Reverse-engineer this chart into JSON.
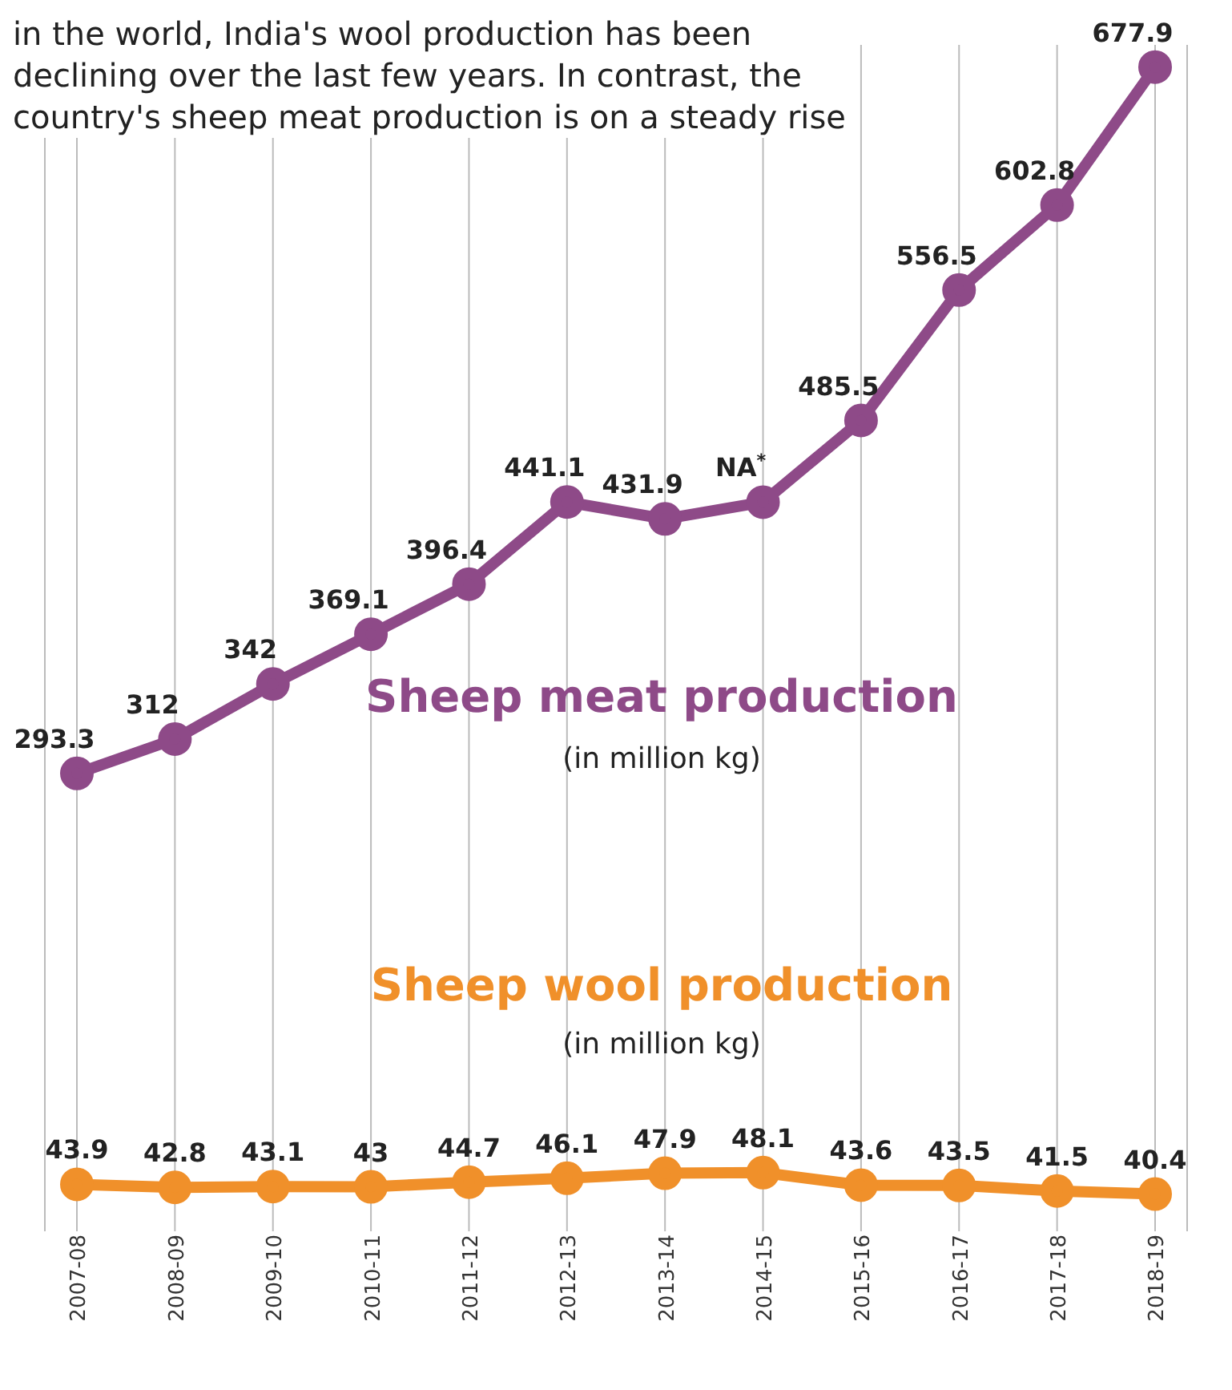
{
  "chart_data": {
    "type": "line",
    "title": "in the world, India's wool production has been declining over the last few years. In contrast, the country's sheep meat production is on a steady rise",
    "categories": [
      "2007-08",
      "2008-09",
      "2009-10",
      "2010-11",
      "2011-12",
      "2012-13",
      "2013-14",
      "2014-15",
      "2015-16",
      "2016-17",
      "2017-18",
      "2018-19"
    ],
    "series": [
      {
        "name": "Sheep meat production",
        "color": "#8e4a88",
        "values": [
          293.3,
          312,
          342,
          369.1,
          396.4,
          441.1,
          431.9,
          441,
          485.5,
          556.5,
          602.8,
          677.9
        ],
        "value_labels": [
          "293.3",
          "312",
          "342",
          "369.1",
          "396.4",
          "441.1",
          "431.9",
          "NA$^{*}$",
          "485.5",
          "556.5",
          "602.8",
          "677.9"
        ]
      },
      {
        "name": "Sheep wool production",
        "color": "#f0902a",
        "axis": "y2",
        "values": [
          43.9,
          42.8,
          43.1,
          43,
          44.7,
          46.1,
          47.9,
          48.1,
          43.6,
          43.5,
          41.5,
          40.4
        ],
        "value_labels": [
          "43.9",
          "42.8",
          "43.1",
          "43",
          "44.7",
          "46.1",
          "47.9",
          "48.1",
          "43.6",
          "43.5",
          "41.5",
          "40.4"
        ]
      }
    ],
    "annotations": [
      "(in million kg)",
      "(in million kg)"
    ],
    "ylim": [
      44,
      690
    ],
    "y2lim": [
      27,
      454
    ],
    "tick_labels": "x",
    "grid": "x",
    "legend": false,
    "marker": "circle",
    "line_style": "solid"
  }
}
